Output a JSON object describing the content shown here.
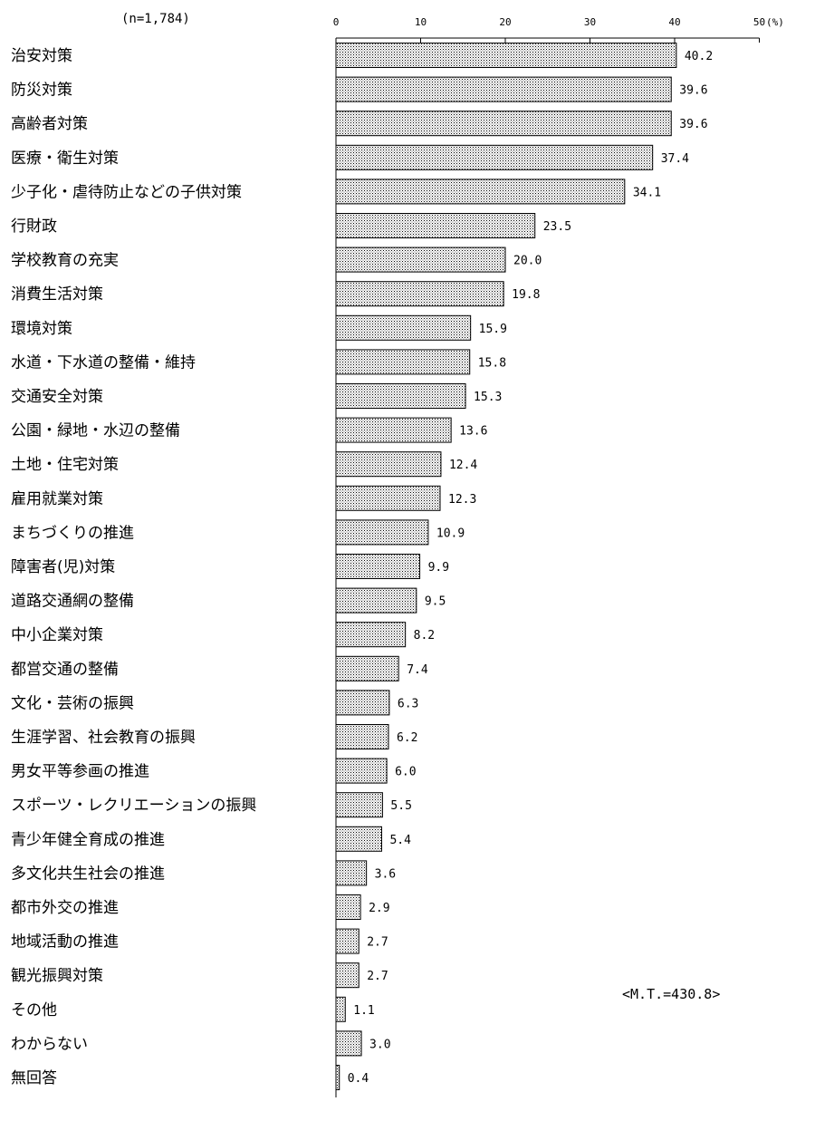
{
  "chart_data": {
    "type": "bar",
    "orientation": "horizontal",
    "sample_label": "(n=1,784)",
    "unit_label": "(%)",
    "x_ticks": [
      "0",
      "10",
      "20",
      "30",
      "40",
      "50"
    ],
    "xlim": [
      0,
      50
    ],
    "grid": false,
    "mt_label": "<M.T.=430.8>",
    "categories": [
      "治安対策",
      "防災対策",
      "高齢者対策",
      "医療・衛生対策",
      "少子化・虐待防止などの子供対策",
      "行財政",
      "学校教育の充実",
      "消費生活対策",
      "環境対策",
      "水道・下水道の整備・維持",
      "交通安全対策",
      "公園・緑地・水辺の整備",
      "土地・住宅対策",
      "雇用就業対策",
      "まちづくりの推進",
      "障害者(児)対策",
      "道路交通網の整備",
      "中小企業対策",
      "都営交通の整備",
      "文化・芸術の振興",
      "生涯学習、社会教育の振興",
      "男女平等参画の推進",
      "スポーツ・レクリエーションの振興",
      "青少年健全育成の推進",
      "多文化共生社会の推進",
      "都市外交の推進",
      "地域活動の推進",
      "観光振興対策",
      "その他",
      "わからない",
      "無回答"
    ],
    "values": [
      40.2,
      39.6,
      39.6,
      37.4,
      34.1,
      23.5,
      20.0,
      19.8,
      15.9,
      15.8,
      15.3,
      13.6,
      12.4,
      12.3,
      10.9,
      9.9,
      9.5,
      8.2,
      7.4,
      6.3,
      6.2,
      6.0,
      5.5,
      5.4,
      3.6,
      2.9,
      2.7,
      2.7,
      1.1,
      3.0,
      0.4
    ],
    "value_labels": [
      "40.2",
      "39.6",
      "39.6",
      "37.4",
      "34.1",
      "23.5",
      "20.0",
      "19.8",
      "15.9",
      "15.8",
      "15.3",
      "13.6",
      "12.4",
      "12.3",
      "10.9",
      "9.9",
      "9.5",
      "8.2",
      "7.4",
      "6.3",
      "6.2",
      "6.0",
      "5.5",
      "5.4",
      "3.6",
      "2.9",
      "2.7",
      "2.7",
      "1.1",
      "3.0",
      "0.4"
    ],
    "bar_fill": "#c8c8c8",
    "bar_stroke": "#000000"
  }
}
